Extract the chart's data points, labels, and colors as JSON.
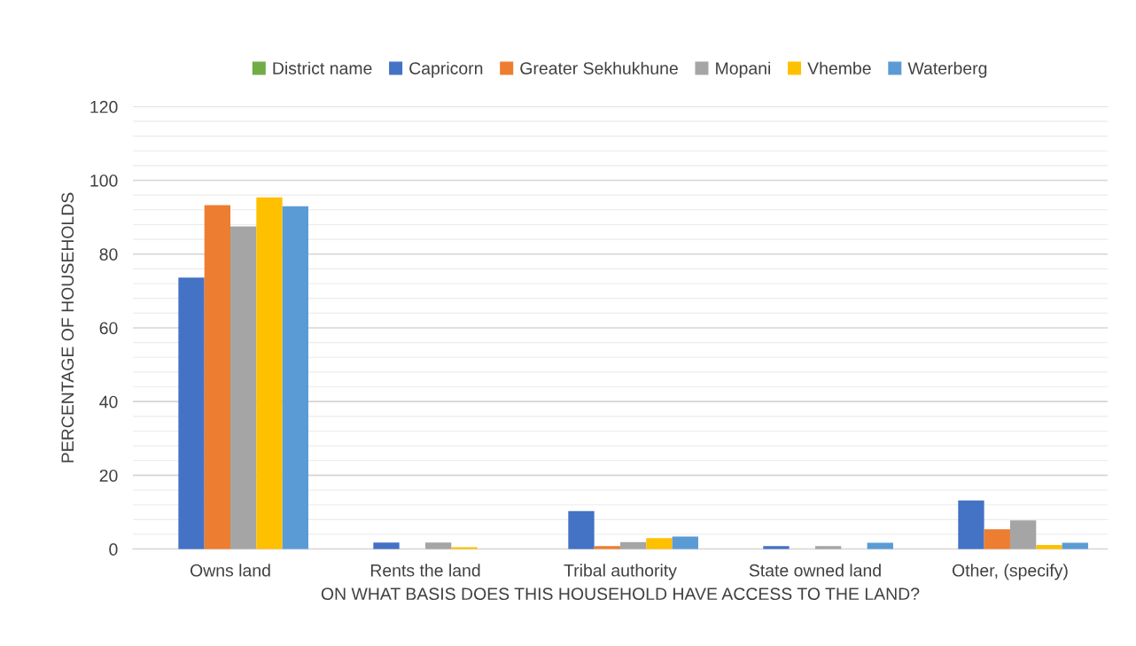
{
  "chart_data": {
    "type": "bar",
    "xlabel": "ON WHAT BASIS DOES THIS HOUSEHOLD HAVE ACCESS TO THE LAND?",
    "ylabel": "PERCENTAGE OF HOUSEHOLDS",
    "categories": [
      "Owns land",
      "Rents the land",
      "Tribal authority",
      "State owned land",
      "Other, (specify)"
    ],
    "series": [
      {
        "name": "District name",
        "color": "#70ad47",
        "values": [
          null,
          null,
          null,
          null,
          null
        ]
      },
      {
        "name": "Capricorn",
        "color": "#4472c4",
        "values": [
          73.6,
          1.8,
          10.3,
          0.8,
          13.2
        ]
      },
      {
        "name": "Greater Sekhukhune",
        "color": "#ed7d31",
        "values": [
          93.3,
          0,
          0.8,
          0,
          5.4
        ]
      },
      {
        "name": "Mopani",
        "color": "#a5a5a5",
        "values": [
          87.5,
          1.8,
          1.9,
          0.8,
          7.8
        ]
      },
      {
        "name": "Vhembe",
        "color": "#ffc000",
        "values": [
          95.4,
          0.5,
          3.0,
          0,
          1.1
        ]
      },
      {
        "name": "Waterberg",
        "color": "#5b9bd5",
        "values": [
          93.0,
          0,
          3.4,
          1.7,
          1.7
        ]
      }
    ],
    "ylim": [
      0,
      120
    ],
    "yticks": [
      0,
      {
        "value": 4,
        "label": null
      },
      {
        "value": 8,
        "label": null
      },
      {
        "value": 12,
        "label": null
      },
      {
        "value": 16,
        "label": null
      },
      20,
      {
        "value": 24,
        "label": null
      },
      {
        "value": 28,
        "label": null
      },
      {
        "value": 32,
        "label": null
      },
      {
        "value": 36,
        "label": null
      },
      40,
      {
        "value": 44,
        "label": null
      },
      {
        "value": 48,
        "label": null
      },
      {
        "value": 52,
        "label": null
      },
      {
        "value": 56,
        "label": null
      },
      60,
      {
        "value": 64,
        "label": null
      },
      {
        "value": 68,
        "label": null
      },
      {
        "value": 72,
        "label": null
      },
      {
        "value": 76,
        "label": null
      },
      80,
      {
        "value": 84,
        "label": null
      },
      {
        "value": 88,
        "label": null
      },
      {
        "value": 92,
        "label": null
      },
      {
        "value": 96,
        "label": null
      },
      100,
      {
        "value": 104,
        "label": null
      },
      {
        "value": 108,
        "label": null
      },
      {
        "value": 112,
        "label": null
      },
      {
        "value": 116,
        "label": null
      },
      120
    ],
    "grid": "y",
    "legend": "top"
  }
}
